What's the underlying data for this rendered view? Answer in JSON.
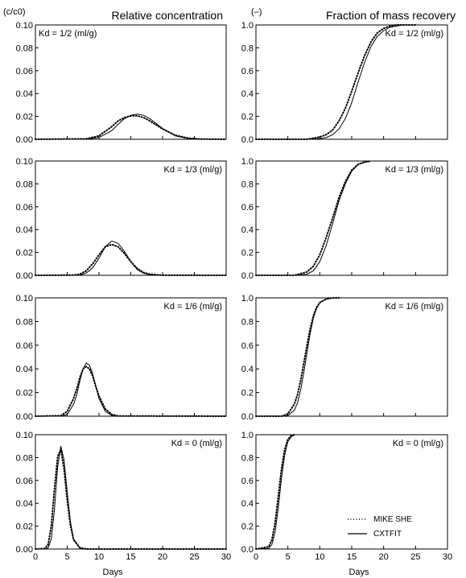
{
  "figure": {
    "left_title": "Relative concentration",
    "right_title": "Fraction of mass recovery",
    "left_unit": "(c/c0)",
    "right_unit": "(–)",
    "x_axis_label": "Days"
  },
  "legend": {
    "mike_she": "MIKE SHE",
    "cxtfit": "CXTFIT"
  },
  "chart_data": [
    {
      "type": "line",
      "column": "left",
      "row": 0,
      "title": "Relative concentration",
      "panel_label": "Kd = 1/2 (ml/g)",
      "ylabel": "(c/c0)",
      "xlabel": "",
      "x_range": [
        0,
        30
      ],
      "y_range": [
        0,
        0.1
      ],
      "x_ticks": [
        0,
        5,
        10,
        15,
        20,
        25,
        30
      ],
      "y_ticks": [
        0,
        0.02,
        0.04,
        0.06,
        0.08,
        0.1
      ],
      "y_tick_labels": [
        "0.00",
        "0.02",
        "0.04",
        "0.06",
        "0.08",
        "0.10"
      ],
      "x_tick_labels": [],
      "series": [
        {
          "name": "MIKE SHE",
          "style": "dotted",
          "x": [
            0,
            8,
            10,
            12,
            13,
            14,
            15,
            16,
            17,
            18,
            20,
            22,
            24,
            26,
            30
          ],
          "y": [
            0,
            0.0004,
            0.003,
            0.011,
            0.016,
            0.019,
            0.0205,
            0.0205,
            0.019,
            0.016,
            0.009,
            0.0035,
            0.001,
            0.0002,
            0
          ]
        },
        {
          "name": "CXTFIT",
          "style": "solid",
          "x": [
            0,
            8,
            10,
            12,
            13,
            14,
            15,
            16,
            17,
            18,
            20,
            22,
            24,
            26,
            30
          ],
          "y": [
            0,
            0.0001,
            0.0015,
            0.0075,
            0.013,
            0.018,
            0.021,
            0.022,
            0.021,
            0.018,
            0.0095,
            0.003,
            0.0006,
            0.0001,
            0
          ]
        }
      ]
    },
    {
      "type": "line",
      "column": "left",
      "row": 1,
      "title": "",
      "panel_label": "Kd = 1/3 (ml/g)",
      "ylabel": "",
      "xlabel": "",
      "x_range": [
        0,
        30
      ],
      "y_range": [
        0,
        0.1
      ],
      "x_ticks": [
        0,
        5,
        10,
        15,
        20,
        25,
        30
      ],
      "y_ticks": [
        0,
        0.02,
        0.04,
        0.06,
        0.08,
        0.1
      ],
      "y_tick_labels": [
        "0.00",
        "0.02",
        "0.04",
        "0.06",
        "0.08",
        "0.10"
      ],
      "x_tick_labels": [],
      "series": [
        {
          "name": "MIKE SHE",
          "style": "dotted",
          "x": [
            0,
            6,
            7,
            8,
            9,
            10,
            11,
            12,
            13,
            14,
            15,
            16,
            17,
            18,
            20,
            30
          ],
          "y": [
            0,
            0.0002,
            0.001,
            0.004,
            0.01,
            0.018,
            0.025,
            0.027,
            0.025,
            0.019,
            0.012,
            0.006,
            0.0025,
            0.001,
            0.0001,
            0
          ]
        },
        {
          "name": "CXTFIT",
          "style": "solid",
          "x": [
            0,
            6,
            7,
            8,
            9,
            10,
            11,
            12,
            13,
            14,
            15,
            16,
            17,
            18,
            20,
            30
          ],
          "y": [
            0,
            0,
            0.0003,
            0.002,
            0.0065,
            0.015,
            0.025,
            0.03,
            0.028,
            0.021,
            0.012,
            0.005,
            0.0018,
            0.0005,
            0,
            0
          ]
        }
      ]
    },
    {
      "type": "line",
      "column": "left",
      "row": 2,
      "title": "",
      "panel_label": "Kd = 1/6 (ml/g)",
      "ylabel": "",
      "xlabel": "",
      "x_range": [
        0,
        30
      ],
      "y_range": [
        0,
        0.1
      ],
      "x_ticks": [
        0,
        5,
        10,
        15,
        20,
        25,
        30
      ],
      "y_ticks": [
        0,
        0.02,
        0.04,
        0.06,
        0.08,
        0.1
      ],
      "y_tick_labels": [
        "0.00",
        "0.02",
        "0.04",
        "0.06",
        "0.08",
        "0.10"
      ],
      "x_tick_labels": [],
      "series": [
        {
          "name": "MIKE SHE",
          "style": "dotted",
          "x": [
            0,
            4,
            5,
            6,
            6.5,
            7,
            7.5,
            8,
            8.5,
            9,
            9.5,
            10,
            11,
            12,
            13,
            30
          ],
          "y": [
            0,
            0.0005,
            0.004,
            0.015,
            0.023,
            0.033,
            0.04,
            0.042,
            0.04,
            0.034,
            0.025,
            0.017,
            0.006,
            0.0015,
            0.0002,
            0
          ]
        },
        {
          "name": "CXTFIT",
          "style": "solid",
          "x": [
            0,
            4,
            5,
            6,
            6.5,
            7,
            7.5,
            8,
            8.5,
            9,
            9.5,
            10,
            11,
            12,
            13,
            30
          ],
          "y": [
            0,
            0,
            0.0015,
            0.01,
            0.018,
            0.03,
            0.04,
            0.045,
            0.043,
            0.036,
            0.025,
            0.015,
            0.004,
            0.0007,
            0,
            0
          ]
        }
      ]
    },
    {
      "type": "line",
      "column": "left",
      "row": 3,
      "title": "",
      "panel_label": "Kd = 0 (ml/g)",
      "ylabel": "",
      "xlabel": "Days",
      "x_range": [
        0,
        30
      ],
      "y_range": [
        0,
        0.1
      ],
      "x_ticks": [
        0,
        5,
        10,
        15,
        20,
        25,
        30
      ],
      "y_ticks": [
        0,
        0.02,
        0.04,
        0.06,
        0.08,
        0.1
      ],
      "y_tick_labels": [
        "0.00",
        "0.02",
        "0.04",
        "0.06",
        "0.08",
        "0.10"
      ],
      "x_tick_labels": [
        "0",
        "5",
        "10",
        "15",
        "20",
        "25",
        "30"
      ],
      "series": [
        {
          "name": "MIKE SHE",
          "style": "dotted",
          "x": [
            0,
            1.5,
            2,
            2.5,
            3,
            3.5,
            4,
            4.5,
            5,
            5.5,
            6,
            7,
            8,
            30
          ],
          "y": [
            0,
            0.0005,
            0.004,
            0.02,
            0.053,
            0.081,
            0.087,
            0.07,
            0.043,
            0.021,
            0.008,
            0.001,
            0,
            0
          ]
        },
        {
          "name": "CXTFIT",
          "style": "solid",
          "x": [
            0,
            1.5,
            2,
            2.5,
            3,
            3.5,
            4,
            4.5,
            5,
            5.5,
            6,
            7,
            8,
            30
          ],
          "y": [
            0,
            0,
            0.001,
            0.009,
            0.035,
            0.072,
            0.09,
            0.078,
            0.05,
            0.024,
            0.009,
            0.001,
            0,
            0
          ]
        }
      ]
    },
    {
      "type": "line",
      "column": "right",
      "row": 0,
      "title": "Fraction of mass recovery",
      "panel_label": "Kd = 1/2 (ml/g)",
      "ylabel": "(–)",
      "xlabel": "",
      "x_range": [
        0,
        30
      ],
      "y_range": [
        0,
        1
      ],
      "x_ticks": [
        0,
        5,
        10,
        15,
        20,
        25,
        30
      ],
      "y_ticks": [
        0,
        0.2,
        0.4,
        0.6,
        0.8,
        1.0
      ],
      "y_tick_labels": [
        "0.0",
        "0.2",
        "0.4",
        "0.6",
        "0.8",
        "1.0"
      ],
      "x_tick_labels": [],
      "series": [
        {
          "name": "MIKE SHE",
          "style": "dotted",
          "x": [
            0,
            8,
            10,
            11,
            12,
            13,
            14,
            15,
            16,
            17,
            18,
            19,
            20,
            21,
            22,
            23,
            24,
            25
          ],
          "y": [
            0,
            0.0,
            0.02,
            0.04,
            0.08,
            0.16,
            0.27,
            0.42,
            0.58,
            0.73,
            0.85,
            0.93,
            0.97,
            0.99,
            1.0,
            1.0,
            1.0,
            1.0
          ]
        },
        {
          "name": "CXTFIT",
          "style": "solid",
          "x": [
            0,
            8,
            10,
            11,
            12,
            13,
            14,
            15,
            16,
            17,
            18,
            19,
            20,
            21,
            22,
            23,
            24,
            25
          ],
          "y": [
            0,
            0.0,
            0.005,
            0.015,
            0.04,
            0.09,
            0.18,
            0.32,
            0.5,
            0.67,
            0.81,
            0.9,
            0.95,
            0.98,
            0.99,
            1.0,
            1.0,
            1.0
          ]
        }
      ]
    },
    {
      "type": "line",
      "column": "right",
      "row": 1,
      "title": "",
      "panel_label": "Kd = 1/3 (ml/g)",
      "ylabel": "",
      "xlabel": "",
      "x_range": [
        0,
        30
      ],
      "y_range": [
        0,
        1
      ],
      "x_ticks": [
        0,
        5,
        10,
        15,
        20,
        25,
        30
      ],
      "y_ticks": [
        0,
        0.2,
        0.4,
        0.6,
        0.8,
        1.0
      ],
      "y_tick_labels": [
        "0.0",
        "0.2",
        "0.4",
        "0.6",
        "0.8",
        "1.0"
      ],
      "x_tick_labels": [],
      "series": [
        {
          "name": "MIKE SHE",
          "style": "dotted",
          "x": [
            0,
            6,
            8,
            9,
            10,
            11,
            12,
            13,
            14,
            15,
            16,
            17,
            18
          ],
          "y": [
            0,
            0.0,
            0.03,
            0.08,
            0.18,
            0.33,
            0.5,
            0.68,
            0.82,
            0.92,
            0.97,
            0.99,
            1.0
          ]
        },
        {
          "name": "CXTFIT",
          "style": "solid",
          "x": [
            0,
            6,
            8,
            9,
            10,
            11,
            12,
            13,
            14,
            15,
            16,
            17,
            18
          ],
          "y": [
            0,
            0.0,
            0.01,
            0.04,
            0.12,
            0.26,
            0.45,
            0.65,
            0.8,
            0.91,
            0.97,
            0.99,
            1.0
          ]
        }
      ]
    },
    {
      "type": "line",
      "column": "right",
      "row": 2,
      "title": "",
      "panel_label": "Kd = 1/6 (ml/g)",
      "ylabel": "",
      "xlabel": "",
      "x_range": [
        0,
        30
      ],
      "y_range": [
        0,
        1
      ],
      "x_ticks": [
        0,
        5,
        10,
        15,
        20,
        25,
        30
      ],
      "y_ticks": [
        0,
        0.2,
        0.4,
        0.6,
        0.8,
        1.0
      ],
      "y_tick_labels": [
        "0.0",
        "0.2",
        "0.4",
        "0.6",
        "0.8",
        "1.0"
      ],
      "x_tick_labels": [],
      "series": [
        {
          "name": "MIKE SHE",
          "style": "dotted",
          "x": [
            0,
            4,
            5,
            6,
            6.5,
            7,
            7.5,
            8,
            8.5,
            9,
            9.5,
            10,
            11,
            12,
            13
          ],
          "y": [
            0,
            0.0,
            0.02,
            0.1,
            0.18,
            0.3,
            0.45,
            0.6,
            0.74,
            0.85,
            0.92,
            0.96,
            0.99,
            1.0,
            1.0
          ]
        },
        {
          "name": "CXTFIT",
          "style": "solid",
          "x": [
            0,
            4,
            5,
            6,
            6.5,
            7,
            7.5,
            8,
            8.5,
            9,
            9.5,
            10,
            11,
            12,
            13
          ],
          "y": [
            0,
            0.0,
            0.005,
            0.05,
            0.11,
            0.22,
            0.37,
            0.54,
            0.7,
            0.83,
            0.91,
            0.96,
            0.99,
            1.0,
            1.0
          ]
        }
      ]
    },
    {
      "type": "line",
      "column": "right",
      "row": 3,
      "title": "",
      "panel_label": "Kd = 0 (ml/g)",
      "ylabel": "",
      "xlabel": "Days",
      "x_range": [
        0,
        30
      ],
      "y_range": [
        0,
        1
      ],
      "x_ticks": [
        0,
        5,
        10,
        15,
        20,
        25,
        30
      ],
      "y_ticks": [
        0,
        0.2,
        0.4,
        0.6,
        0.8,
        1.0
      ],
      "y_tick_labels": [
        "0.0",
        "0.2",
        "0.4",
        "0.6",
        "0.8",
        "1.0"
      ],
      "x_tick_labels": [
        "0",
        "5",
        "10",
        "15",
        "20",
        "25",
        "30"
      ],
      "series": [
        {
          "name": "MIKE SHE",
          "style": "dotted",
          "x": [
            0,
            2,
            2.5,
            3,
            3.5,
            4,
            4.5,
            5,
            5.5,
            6
          ],
          "y": [
            0,
            0.02,
            0.08,
            0.23,
            0.46,
            0.7,
            0.87,
            0.96,
            0.99,
            1.0
          ]
        },
        {
          "name": "CXTFIT",
          "style": "solid",
          "x": [
            0,
            2,
            2.5,
            3,
            3.5,
            4,
            4.5,
            5,
            5.5,
            6
          ],
          "y": [
            0,
            0.005,
            0.04,
            0.15,
            0.36,
            0.62,
            0.82,
            0.94,
            0.98,
            1.0
          ]
        }
      ]
    }
  ]
}
